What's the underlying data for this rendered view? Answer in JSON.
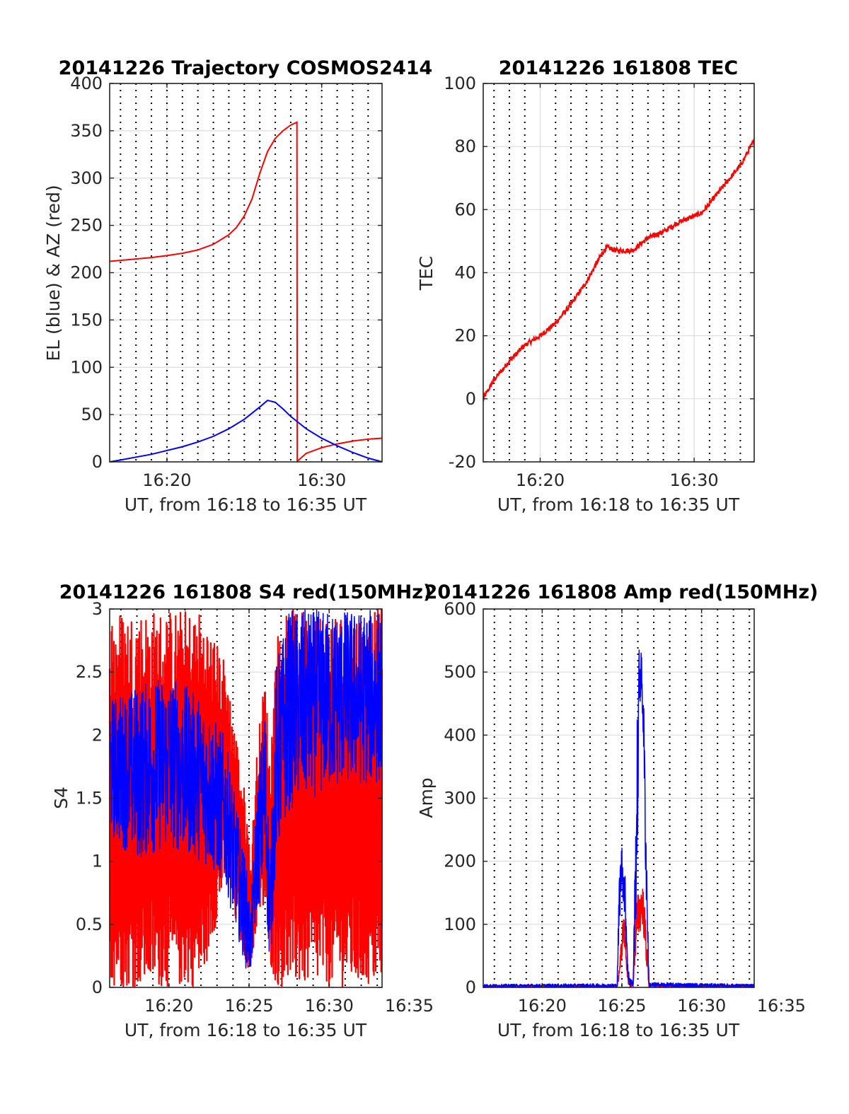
{
  "figure": {
    "bg": "#ffffff",
    "axis_color": "#262626",
    "grid_color": "#dcdcdc"
  },
  "chart_data": [
    {
      "id": "trajectory",
      "type": "line",
      "title": "20141226 Trajectory COSMOS2414",
      "xlabel": "UT, from 16:18 to 16:35 UT",
      "ylabel": "EL (blue) & AZ (red)",
      "xlim": [
        16.3,
        33.9
      ],
      "ylim": [
        0,
        400
      ],
      "xticks": [
        {
          "v": 20,
          "label": "16:20"
        },
        {
          "v": 30,
          "label": "16:30"
        }
      ],
      "yticks": [
        0,
        50,
        100,
        150,
        200,
        250,
        300,
        350,
        400
      ],
      "dotted_x": [
        17,
        18,
        19,
        20,
        21,
        22,
        23,
        24,
        25,
        26,
        27,
        28,
        29,
        30,
        31,
        32,
        33
      ],
      "series": [
        {
          "color": "#ff0000",
          "x": [
            16.3,
            17,
            18,
            19,
            20,
            21,
            22,
            23,
            24,
            24.5,
            25,
            25.5,
            26,
            26.5,
            27,
            27.5,
            28,
            28.4,
            28.42,
            28.45,
            29,
            30,
            31,
            32,
            33,
            33.9
          ],
          "y": [
            212,
            213,
            214.5,
            216,
            218,
            220.5,
            224,
            230,
            240,
            248,
            260,
            278,
            305,
            328,
            342,
            350,
            356,
            359,
            0,
            1,
            9,
            15,
            19,
            22,
            24,
            25
          ]
        },
        {
          "color": "#0000ff",
          "x": [
            16.3,
            17,
            18,
            19,
            20,
            21,
            22,
            23,
            24,
            25,
            26,
            26.5,
            27,
            27.5,
            28,
            29,
            30,
            31,
            32,
            33,
            33.9
          ],
          "y": [
            0,
            2,
            5,
            8,
            12,
            16,
            21,
            27,
            35,
            45,
            58,
            65,
            63,
            56,
            48,
            35,
            25,
            17,
            10,
            4,
            0
          ]
        }
      ]
    },
    {
      "id": "tec",
      "type": "line",
      "title": "20141226 161808 TEC",
      "xlabel": "UT, from 16:18 to 16:35 UT",
      "ylabel": "TEC",
      "xlim": [
        16.3,
        33.9
      ],
      "ylim": [
        -20,
        100
      ],
      "xticks": [
        {
          "v": 20,
          "label": "16:20"
        },
        {
          "v": 30,
          "label": "16:30"
        }
      ],
      "yticks": [
        -20,
        0,
        20,
        40,
        60,
        80,
        100
      ],
      "dotted_x": [
        17,
        18,
        19,
        21,
        22,
        23,
        24,
        25,
        26,
        27,
        28,
        29,
        31,
        32,
        33
      ],
      "series": [
        {
          "color": "#ff0000",
          "noise": 0.8,
          "x": [
            16.3,
            17,
            18,
            19,
            20,
            21,
            22,
            23,
            24,
            24.3,
            25,
            26,
            26.5,
            27,
            28,
            29,
            30,
            30.5,
            31,
            32,
            33,
            33.9
          ],
          "y": [
            0,
            6,
            12,
            17,
            20,
            24,
            30,
            37,
            46,
            48,
            47,
            47,
            49,
            51,
            53,
            56,
            58,
            59,
            62,
            68,
            74,
            82
          ]
        }
      ]
    },
    {
      "id": "s4",
      "type": "line",
      "title": "20141226 161808 S4 red(150MHz)",
      "xlabel": "UT, from 16:18 to 16:35 UT",
      "ylabel": "S4",
      "xlim": [
        16.3,
        33.3
      ],
      "ylim": [
        0,
        3
      ],
      "xticks": [
        {
          "v": 20,
          "label": "16:20"
        },
        {
          "v": 25,
          "label": "16:25"
        },
        {
          "v": 30,
          "label": "16:30"
        },
        {
          "v": 35,
          "label": "16:35"
        }
      ],
      "yticks": [
        0,
        0.5,
        1,
        1.5,
        2,
        2.5,
        3
      ],
      "dotted_x": [
        17,
        18,
        19,
        20,
        21,
        22,
        23,
        24,
        25,
        26,
        27,
        28,
        29,
        30,
        31,
        32,
        33
      ],
      "series": [
        {
          "color": "#ff0000",
          "style": "spiky",
          "x": [
            16.3,
            18,
            20,
            22,
            23.5,
            24.8,
            25.1,
            25.5,
            26,
            26.3,
            26.7,
            27.5,
            29,
            31,
            33.3
          ],
          "lo": [
            0.0,
            0.0,
            0.0,
            0.0,
            0.8,
            0.2,
            0.1,
            0.5,
            0.6,
            0.2,
            0.0,
            0.0,
            0.0,
            0.0,
            0.0
          ],
          "hi": [
            3.0,
            3.0,
            3.0,
            3.0,
            2.6,
            1.5,
            1.0,
            1.9,
            2.5,
            1.8,
            2.8,
            3.0,
            3.0,
            3.0,
            3.0
          ]
        },
        {
          "color": "#0000ff",
          "style": "noisy",
          "x": [
            16.3,
            18,
            20,
            22,
            23.5,
            24.8,
            25.1,
            25.5,
            26,
            26.3,
            26.7,
            27.5,
            29,
            31,
            33.3
          ],
          "lo": [
            1.2,
            1.0,
            1.1,
            1.0,
            0.8,
            0.15,
            0.1,
            0.6,
            0.8,
            0.1,
            1.0,
            1.4,
            1.5,
            1.6,
            1.6
          ],
          "hi": [
            2.3,
            2.4,
            2.5,
            2.3,
            2.0,
            1.0,
            0.6,
            1.6,
            2.3,
            1.0,
            2.6,
            3.0,
            3.0,
            3.0,
            3.0
          ]
        }
      ]
    },
    {
      "id": "amp",
      "type": "line",
      "title": "20141226 161808 Amp red(150MHz)",
      "xlabel": "UT, from 16:18 to 16:35 UT",
      "ylabel": "Amp",
      "xlim": [
        16.3,
        33.3
      ],
      "ylim": [
        0,
        600
      ],
      "xticks": [
        {
          "v": 20,
          "label": "16:20"
        },
        {
          "v": 25,
          "label": "16:25"
        },
        {
          "v": 30,
          "label": "16:30"
        },
        {
          "v": 35,
          "label": "16:35"
        }
      ],
      "yticks": [
        0,
        100,
        200,
        300,
        400,
        500,
        600
      ],
      "dotted_x": [
        17,
        18,
        19,
        20,
        21,
        22,
        23,
        24,
        25,
        26,
        27,
        28,
        29,
        30,
        31,
        32,
        33
      ],
      "series": [
        {
          "color": "#ff0000",
          "style": "noisy",
          "x": [
            16.3,
            24.7,
            24.9,
            25.1,
            25.2,
            25.4,
            25.7,
            25.9,
            26.1,
            26.3,
            26.5,
            26.7,
            33.3
          ],
          "lo": [
            0,
            0,
            20,
            70,
            50,
            0,
            0,
            60,
            80,
            100,
            40,
            0,
            0
          ],
          "hi": [
            3,
            3,
            60,
            120,
            100,
            10,
            5,
            140,
            160,
            170,
            110,
            5,
            3
          ]
        },
        {
          "color": "#0000ff",
          "style": "noisy",
          "x": [
            16.3,
            24.7,
            24.85,
            25.0,
            25.2,
            25.4,
            25.7,
            25.95,
            26.1,
            26.2,
            26.35,
            26.5,
            26.7,
            33.3
          ],
          "lo": [
            0,
            0,
            100,
            160,
            100,
            0,
            0,
            150,
            420,
            470,
            380,
            150,
            0,
            0
          ],
          "hi": [
            5,
            6,
            200,
            230,
            180,
            30,
            8,
            420,
            560,
            540,
            480,
            300,
            8,
            5
          ]
        }
      ]
    }
  ]
}
